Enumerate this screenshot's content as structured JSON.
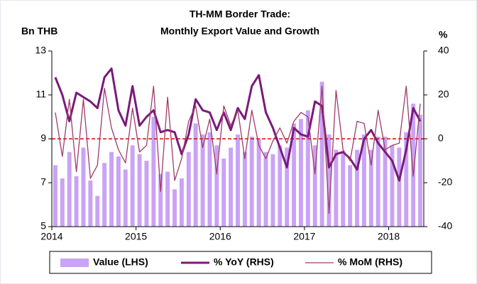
{
  "chart_data": {
    "type": "bar-line",
    "title": [
      "TH-MM Border Trade:",
      "Monthly Export Value and Growth"
    ],
    "ylabel": "Bn THB",
    "y2label": "%",
    "x": [
      2014.0,
      2014.0833,
      2014.1667,
      2014.25,
      2014.3333,
      2014.4167,
      2014.5,
      2014.5833,
      2014.6667,
      2014.75,
      2014.8333,
      2014.9167,
      2015.0,
      2015.0833,
      2015.1667,
      2015.25,
      2015.3333,
      2015.4167,
      2015.5,
      2015.5833,
      2015.6667,
      2015.75,
      2015.8333,
      2015.9167,
      2016.0,
      2016.0833,
      2016.1667,
      2016.25,
      2016.3333,
      2016.4167,
      2016.5,
      2016.5833,
      2016.6667,
      2016.75,
      2016.8333,
      2016.9167,
      2017.0,
      2017.0833,
      2017.1667,
      2017.25,
      2017.3333,
      2017.4167,
      2017.5,
      2017.5833,
      2017.6667,
      2017.75,
      2017.8333,
      2017.9167,
      2018.0,
      2018.0833,
      2018.1667,
      2018.25,
      2018.3333
    ],
    "xlim": [
      2014,
      2018.4167
    ],
    "xticks": [
      2014,
      2015,
      2016,
      2017,
      2018
    ],
    "ylim": [
      5,
      13
    ],
    "yticks": [
      5,
      7,
      9,
      11,
      13
    ],
    "y2lim": [
      -40,
      40
    ],
    "y2ticks": [
      -40,
      -20,
      0,
      20,
      40
    ],
    "reference_line": {
      "axis": "y2",
      "value": 0,
      "color": "#e00000"
    },
    "legend": "bottom",
    "series": [
      {
        "name": "Value (LHS)",
        "kind": "bar",
        "color": "#c9a3f5",
        "values": [
          7.8,
          7.2,
          8.4,
          7.3,
          8.6,
          7.1,
          6.4,
          7.9,
          8.4,
          8.2,
          7.6,
          8.7,
          8.3,
          8.0,
          10.0,
          7.4,
          7.5,
          6.7,
          7.2,
          8.4,
          9.7,
          9.2,
          9.3,
          8.7,
          8.1,
          8.6,
          9.2,
          8.4,
          9.1,
          9.0,
          8.4,
          8.3,
          8.7,
          8.6,
          9.7,
          9.9,
          10.3,
          8.7,
          11.6,
          9.2,
          8.5,
          8.4,
          7.8,
          8.5,
          9.2,
          8.5,
          9.1,
          9.1,
          8.7,
          8.6,
          9.3,
          10.6,
          10.1
        ]
      },
      {
        "name": "% YoY (RHS)",
        "kind": "line",
        "axis": "y2",
        "color": "#7a1a7a",
        "width": 3,
        "values": [
          28,
          20,
          8,
          21,
          19,
          17,
          14,
          28,
          32,
          13,
          6,
          24,
          6,
          10,
          13,
          3,
          4,
          3,
          -7,
          2,
          18,
          13,
          12,
          4,
          12,
          4,
          14,
          9,
          24,
          29,
          12,
          5,
          -4,
          -13,
          5,
          2,
          1,
          17,
          15,
          -13,
          -7,
          -6,
          -9,
          -14,
          0,
          4,
          -2,
          -6,
          -10,
          -19,
          -5,
          14,
          8
        ]
      },
      {
        "name": "% MoM (RHS)",
        "kind": "line",
        "axis": "y2",
        "color": "#a03a6a",
        "width": 1.3,
        "values": [
          12,
          -8,
          18,
          -15,
          18,
          -18,
          -12,
          23,
          5,
          -5,
          -11,
          14,
          -6,
          -3,
          24,
          -24,
          19,
          -19,
          -9,
          8,
          15,
          -4,
          9,
          -16,
          15,
          6,
          13,
          -9,
          13,
          -3,
          -9,
          -1,
          5,
          -2,
          8,
          12,
          10,
          -16,
          24,
          -34,
          22,
          -5,
          -10,
          8,
          7,
          -12,
          13,
          -5,
          -3,
          -2,
          24,
          -17,
          16
        ]
      }
    ]
  }
}
